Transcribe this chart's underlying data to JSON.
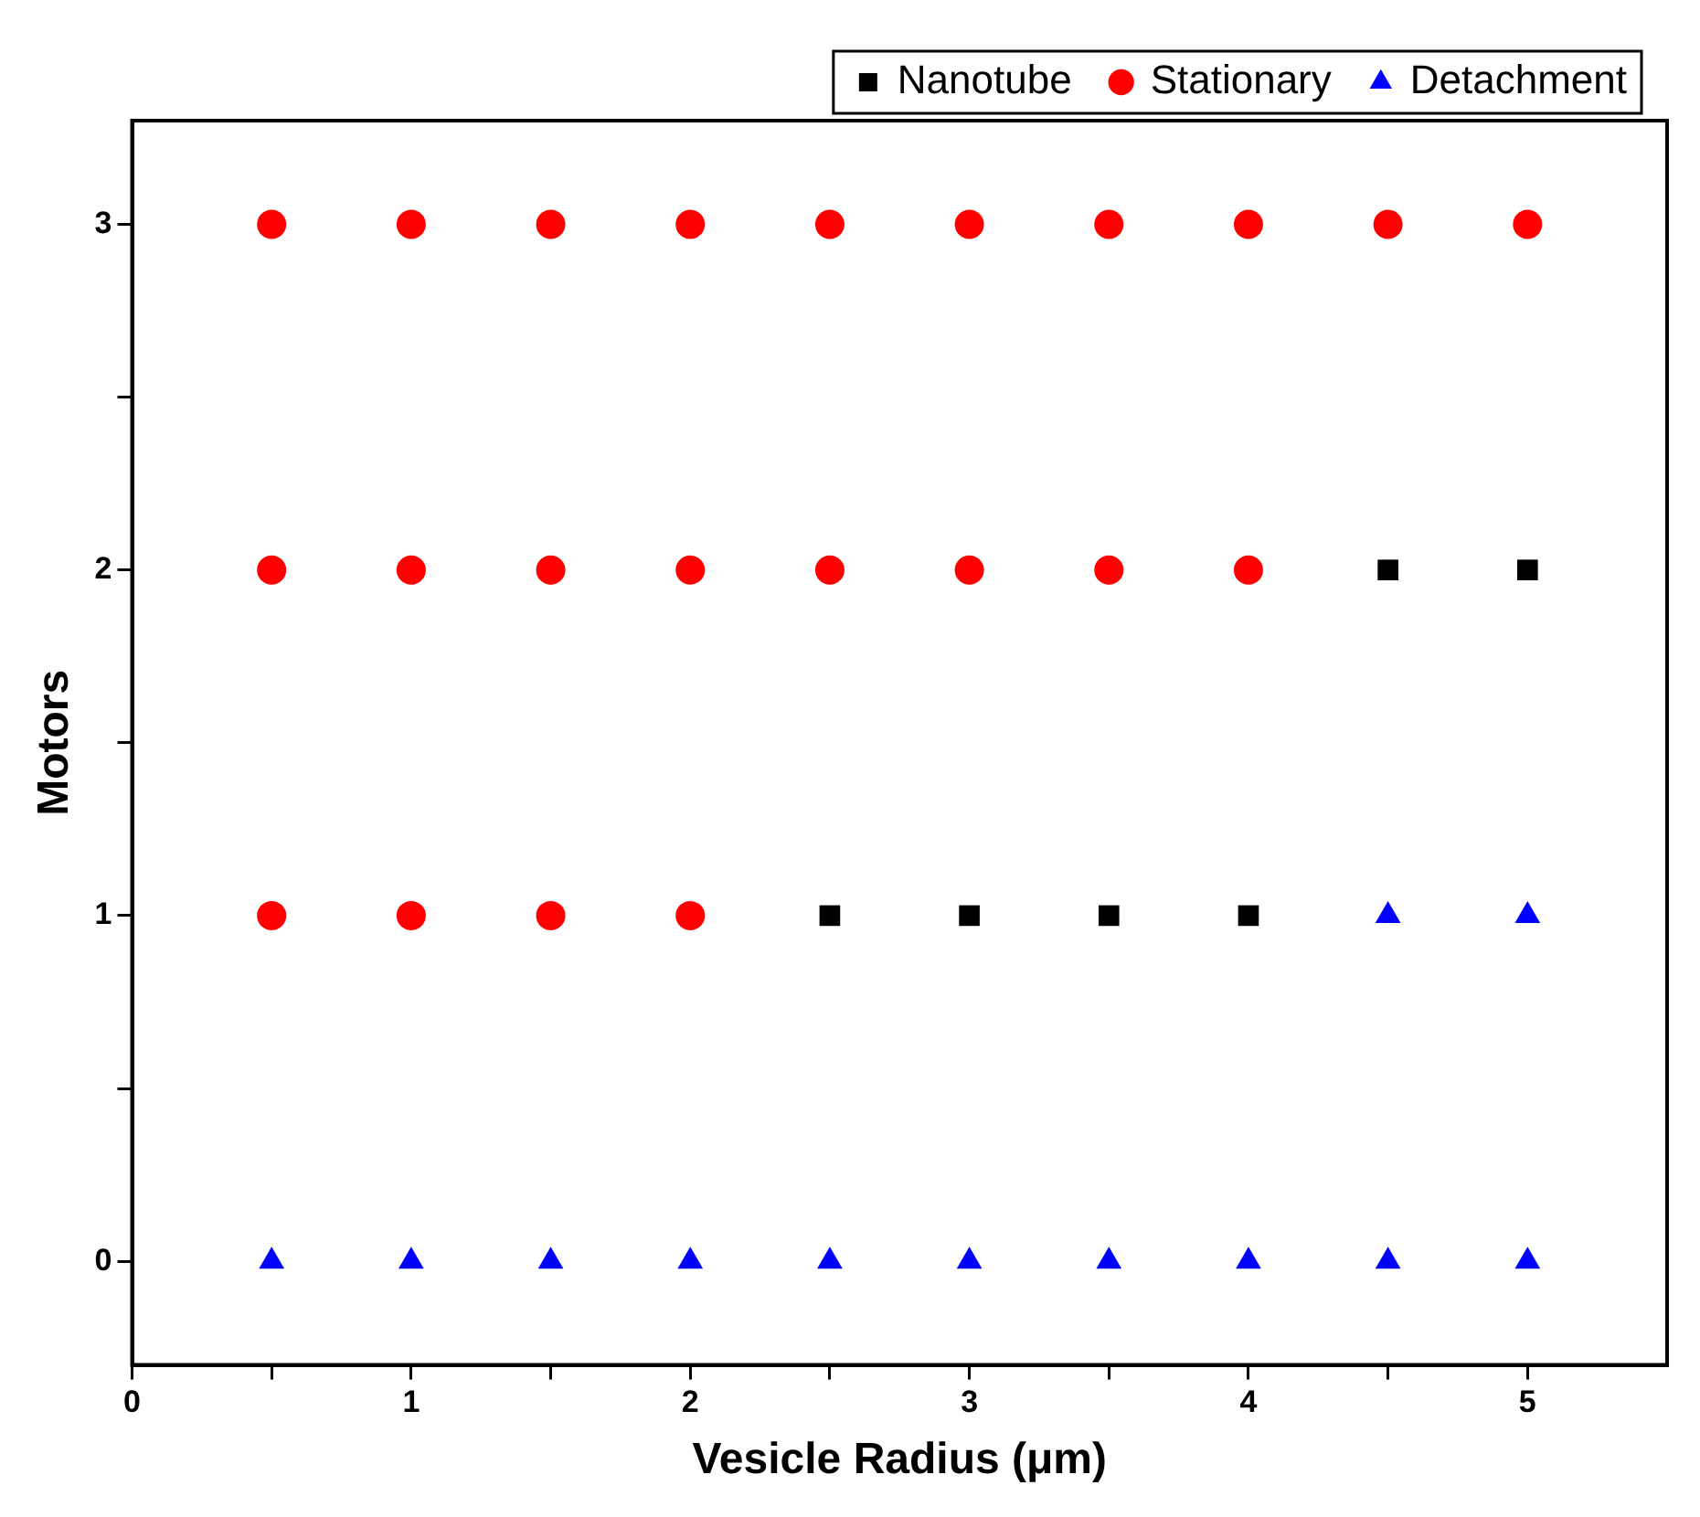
{
  "chart_data": {
    "type": "scatter",
    "xlabel": "Vesicle Radius (μm)",
    "ylabel": "Motors",
    "xlim": [
      0,
      5.5
    ],
    "ylim": [
      -0.3,
      3.3
    ],
    "xticks": [
      0,
      {
        "value": 0.5,
        "label": null
      },
      1,
      {
        "value": 1.5,
        "label": null
      },
      2,
      {
        "value": 2.5,
        "label": null
      },
      3,
      {
        "value": 3.5,
        "label": null
      },
      4,
      {
        "value": 4.5,
        "label": null
      },
      5
    ],
    "yticks": [
      0,
      {
        "value": 0.5,
        "label": null
      },
      1,
      {
        "value": 1.5,
        "label": null
      },
      2,
      {
        "value": 2.5,
        "label": null
      },
      3
    ],
    "grid": false,
    "legend": "top right",
    "series": [
      {
        "name": "Nanotube",
        "color": "#000000",
        "marker": "square",
        "x": [
          2.5,
          3,
          3.5,
          4,
          4.5,
          5
        ],
        "values": [
          1,
          1,
          1,
          1,
          2,
          2
        ]
      },
      {
        "name": "Stationary",
        "color": "#ff0000",
        "marker": "circle",
        "x": [
          0.5,
          1,
          1.5,
          2,
          2.5,
          3,
          3.5,
          4,
          4.5,
          5,
          0.5,
          1,
          1.5,
          2,
          2.5,
          3,
          3.5,
          4,
          0.5,
          1,
          1.5,
          2
        ],
        "values": [
          3,
          3,
          3,
          3,
          3,
          3,
          3,
          3,
          3,
          3,
          2,
          2,
          2,
          2,
          2,
          2,
          2,
          2,
          1,
          1,
          1,
          1
        ]
      },
      {
        "name": "Detachment",
        "color": "#0000ff",
        "marker": "triangle",
        "x": [
          0.5,
          1,
          1.5,
          2,
          2.5,
          3,
          3.5,
          4,
          4.5,
          5,
          4.5,
          5
        ],
        "values": [
          0,
          0,
          0,
          0,
          0,
          0,
          0,
          0,
          0,
          0,
          1,
          1
        ]
      }
    ]
  }
}
